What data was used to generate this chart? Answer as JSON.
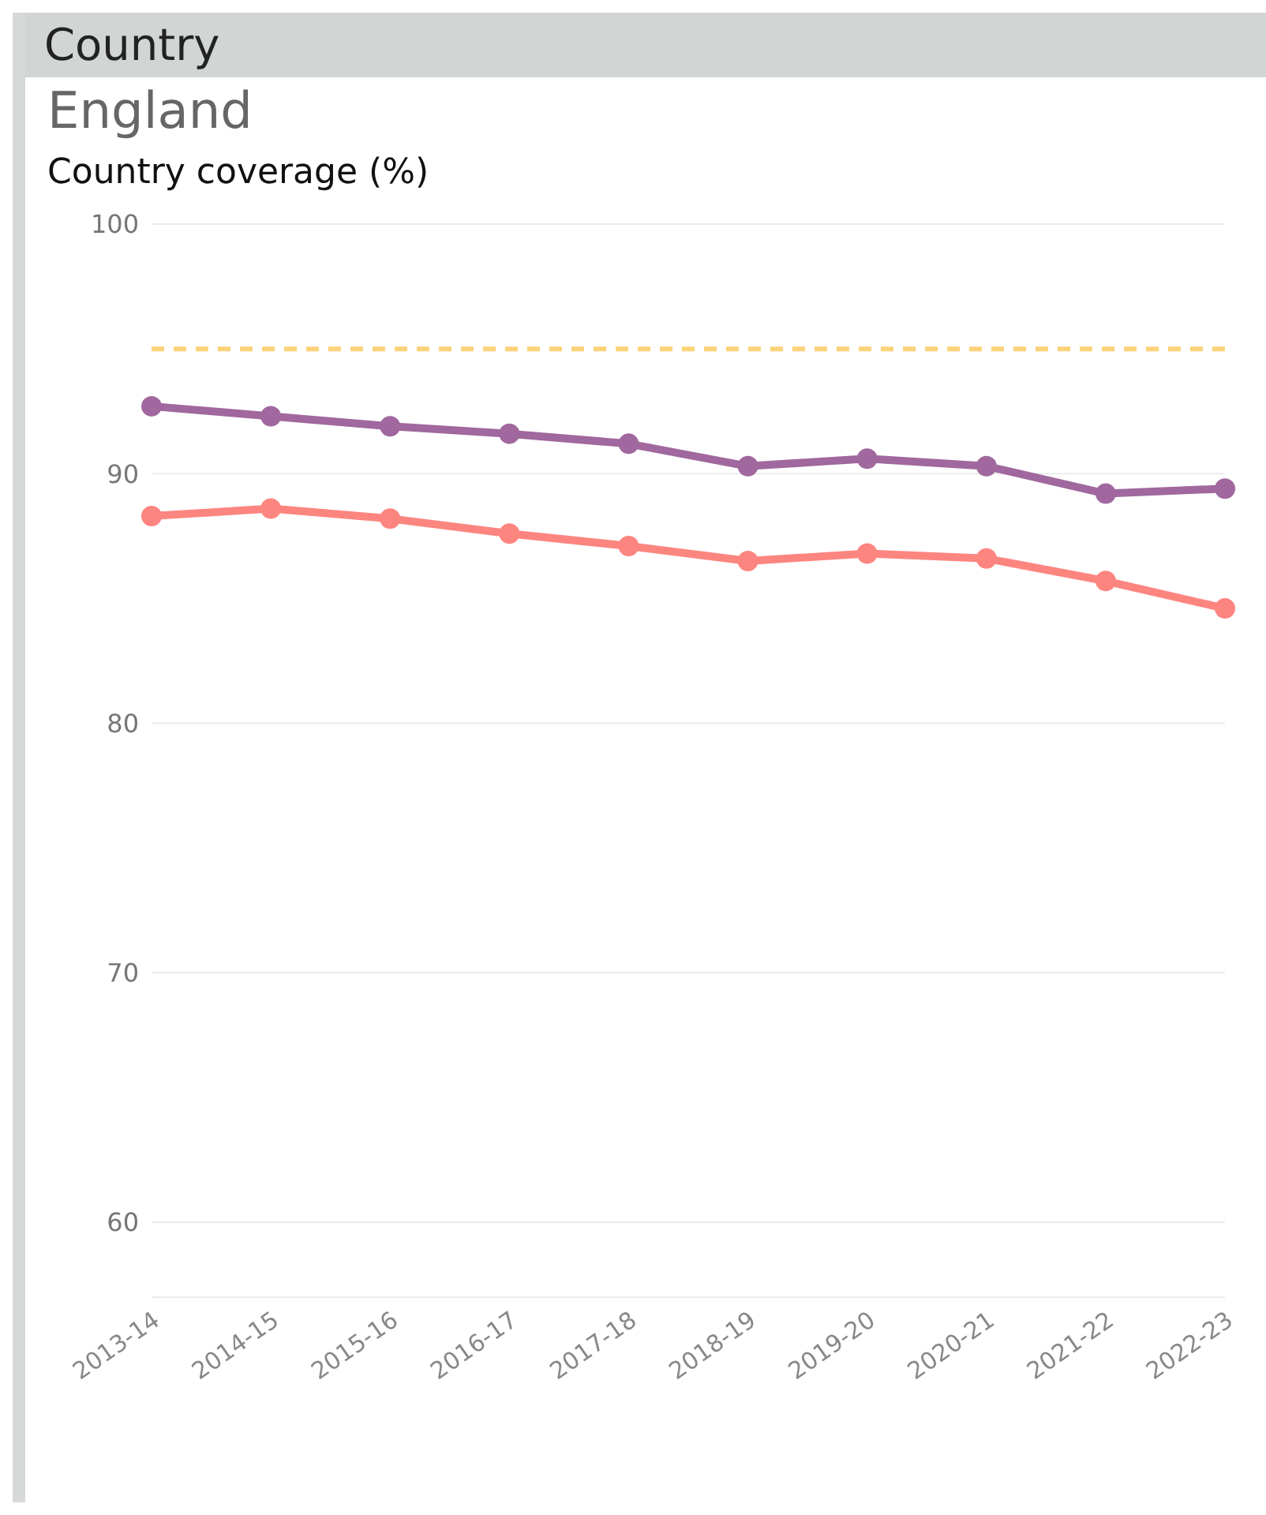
{
  "chart_data": {
    "type": "line",
    "title": "Country",
    "subtitle": "England",
    "ylabel": "Country coverage (%)",
    "categories": [
      "2013-14",
      "2014-15",
      "2015-16",
      "2016-17",
      "2017-18",
      "2018-19",
      "2019-20",
      "2020-21",
      "2021-22",
      "2022-23"
    ],
    "series": [
      {
        "color": "#a0689e",
        "values": [
          92.7,
          92.3,
          91.9,
          91.6,
          91.2,
          90.3,
          90.6,
          90.3,
          89.2,
          89.4
        ]
      },
      {
        "color": "#fd8580",
        "values": [
          88.3,
          88.6,
          88.2,
          87.6,
          87.1,
          86.5,
          86.8,
          86.6,
          85.7,
          84.6
        ]
      }
    ],
    "ylim": [
      57,
      100
    ],
    "yticks": [
      60,
      70,
      80,
      90,
      100
    ],
    "grid": "y",
    "legend": false,
    "marker": "circle",
    "line_style": "solid",
    "ref_lines": [
      {
        "axis": "y",
        "value": 95,
        "color": "#fcd27a",
        "line_style": "dashed"
      }
    ]
  }
}
